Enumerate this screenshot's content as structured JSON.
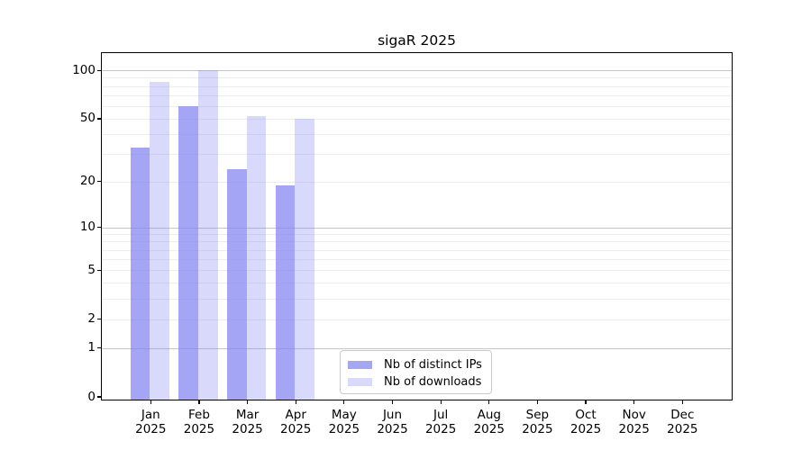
{
  "chart_data": {
    "type": "bar",
    "title": "sigaR 2025",
    "categories": [
      "Jan",
      "Feb",
      "Mar",
      "Apr",
      "May",
      "Jun",
      "Jul",
      "Aug",
      "Sep",
      "Oct",
      "Nov",
      "Dec"
    ],
    "year": "2025",
    "series": [
      {
        "name": "Nb of distinct IPs",
        "color": "rgba(130,130,243,0.72)",
        "values": [
          33,
          60,
          24,
          19,
          null,
          null,
          null,
          null,
          null,
          null,
          null,
          null
        ]
      },
      {
        "name": "Nb of downloads",
        "color": "rgba(130,130,243,0.30)",
        "values": [
          85,
          100,
          52,
          50,
          null,
          null,
          null,
          null,
          null,
          null,
          null,
          null
        ]
      }
    ],
    "yscale": "log1p",
    "ylim": [
      0,
      127
    ],
    "yticks": [
      0,
      1,
      2,
      5,
      10,
      20,
      50,
      100
    ],
    "major_gridlines": [
      1,
      10,
      100
    ],
    "minor_gridlines": [
      2,
      3,
      4,
      5,
      6,
      7,
      8,
      9,
      20,
      30,
      40,
      50,
      60,
      70,
      80,
      90
    ],
    "grid": true,
    "legend_position": "lower center inside",
    "xlabel": "",
    "ylabel": ""
  }
}
